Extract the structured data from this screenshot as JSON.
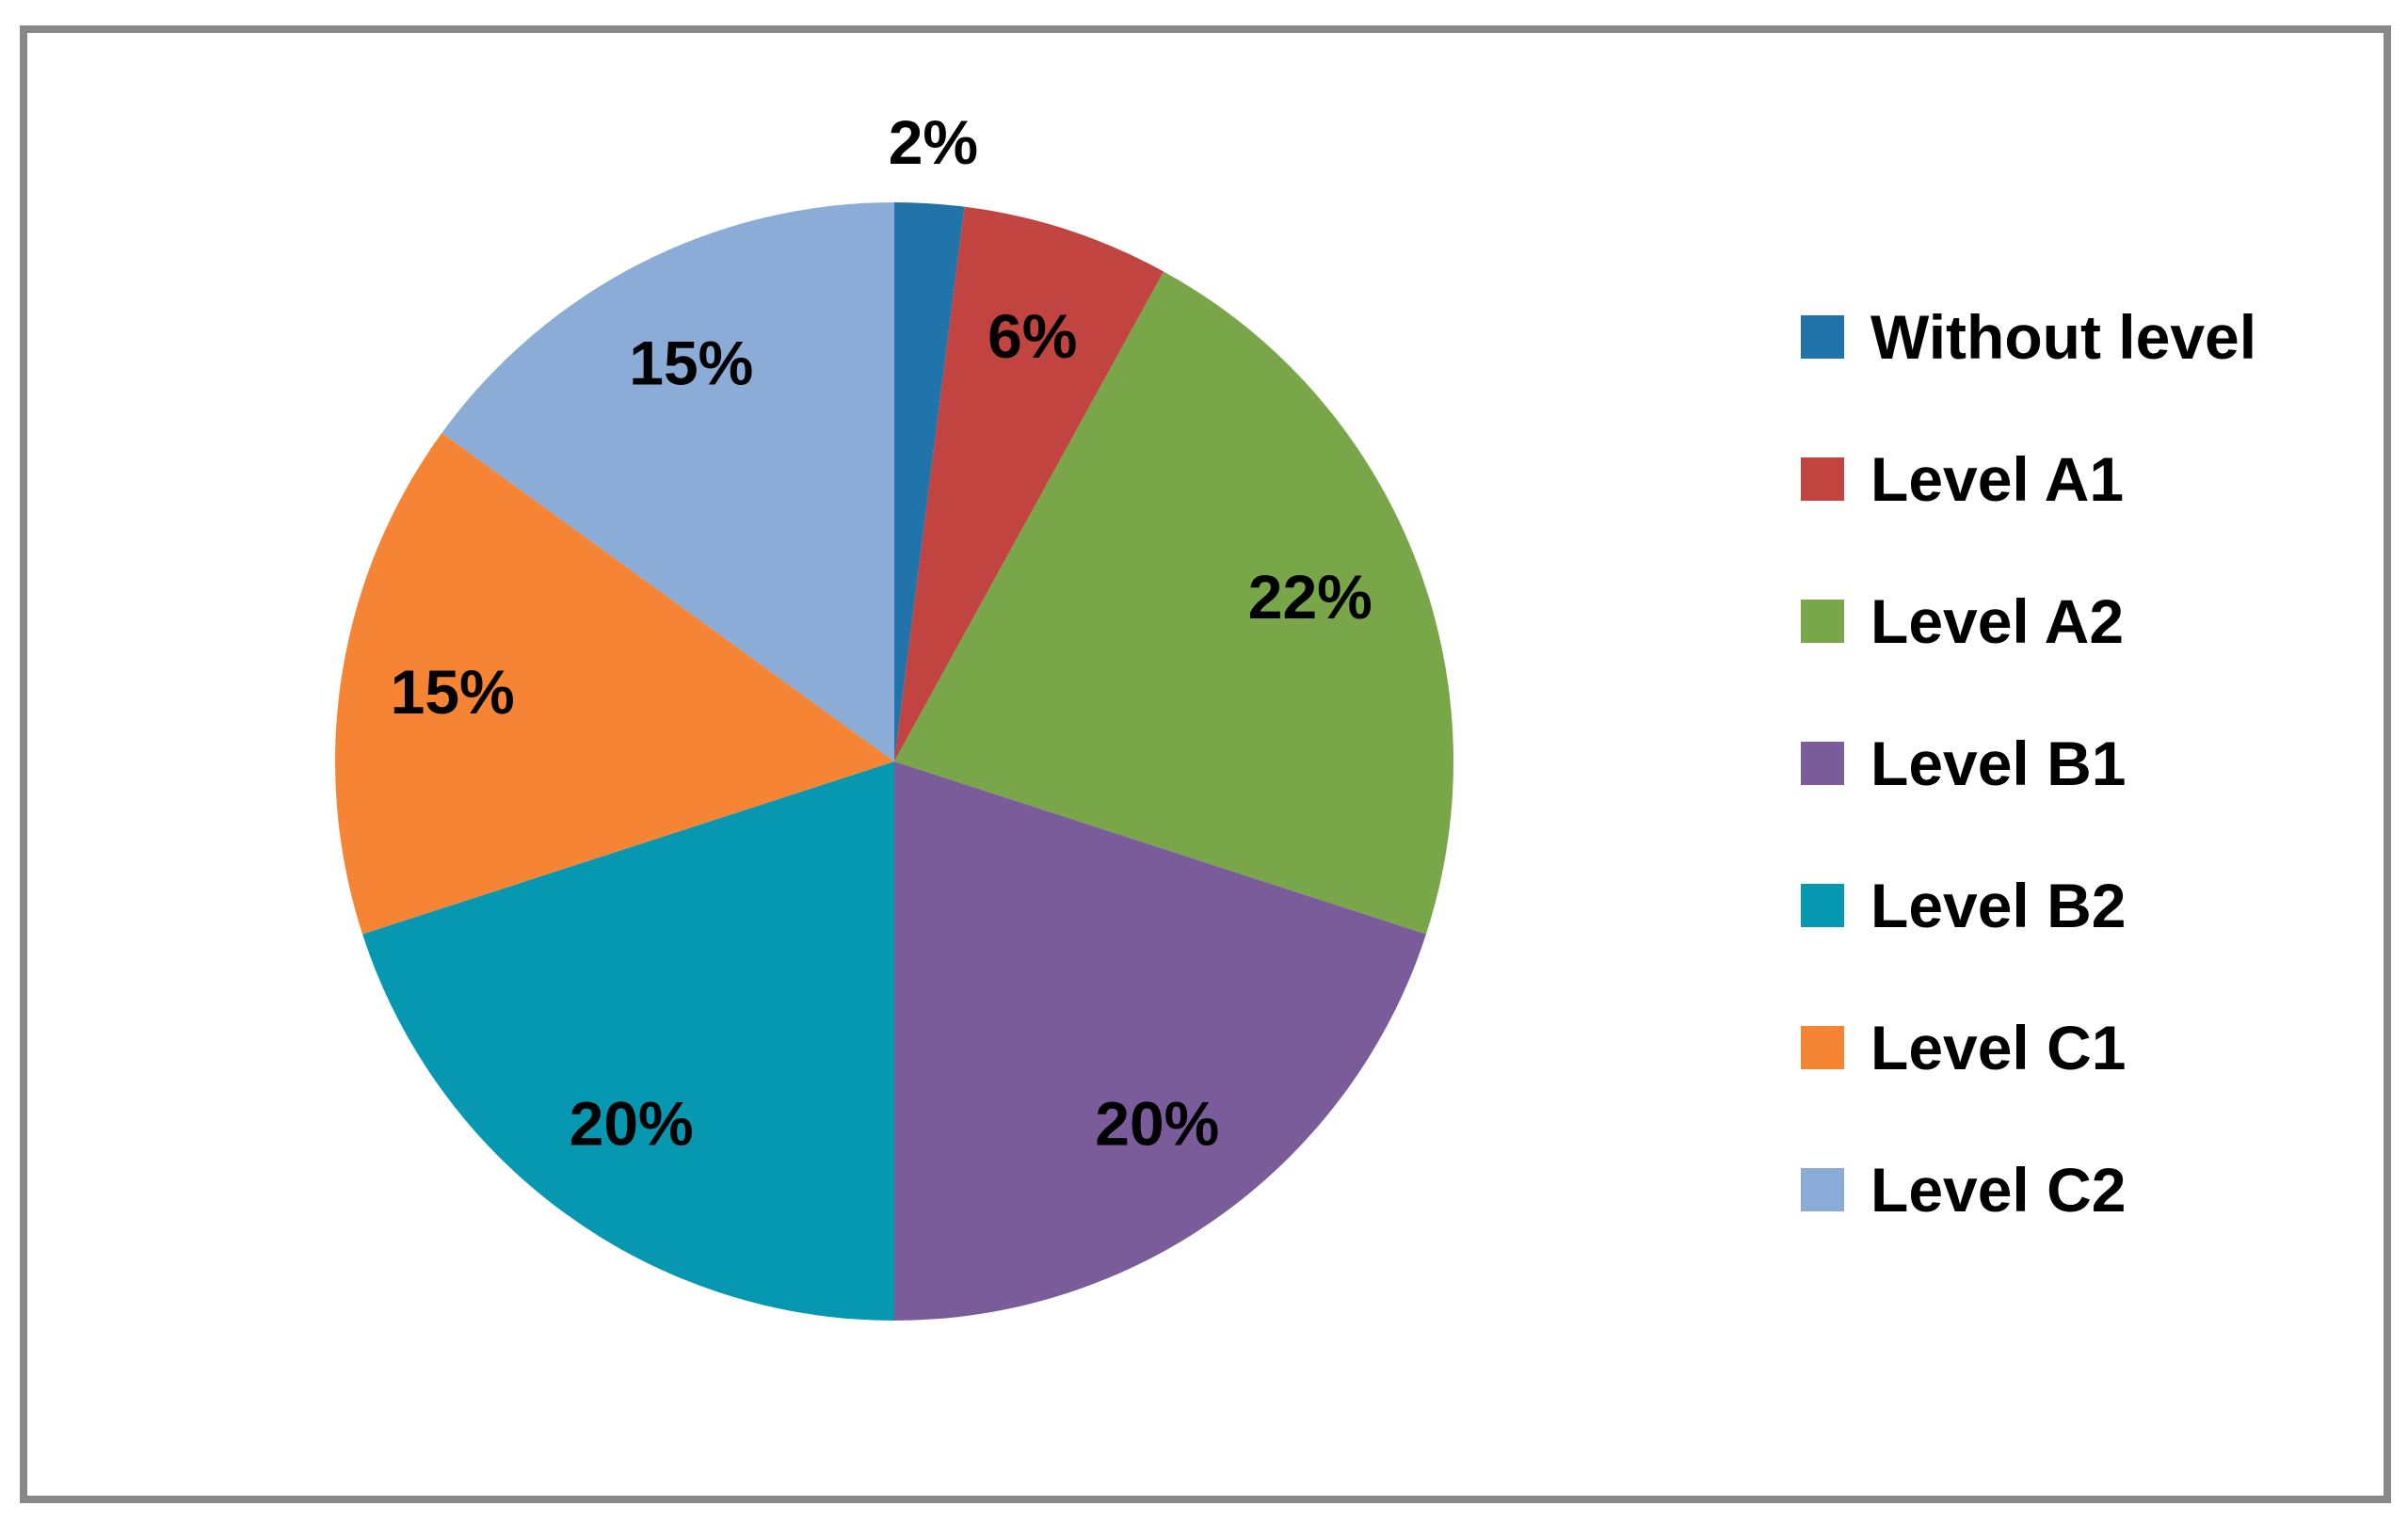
{
  "chart_data": {
    "type": "pie",
    "categories": [
      "Without level",
      "Level A1",
      "Level A2",
      "Level B1",
      "Level B2",
      "Level C1",
      "Level C2"
    ],
    "values": [
      2,
      6,
      22,
      20,
      20,
      15,
      15
    ],
    "slices": [
      {
        "label": "Without level",
        "value": 2,
        "percent_label": "2%",
        "color": "#2074A9",
        "label_outside": true
      },
      {
        "label": "Level A1",
        "value": 6,
        "percent_label": "6%",
        "color": "#C24440",
        "label_outside": false
      },
      {
        "label": "Level A2",
        "value": 22,
        "percent_label": "22%",
        "color": "#7AA64A",
        "label_outside": false
      },
      {
        "label": "Level B1",
        "value": 20,
        "percent_label": "20%",
        "color": "#7B5C9B",
        "label_outside": false
      },
      {
        "label": "Level B2",
        "value": 20,
        "percent_label": "20%",
        "color": "#0598B0",
        "label_outside": false
      },
      {
        "label": "Level C1",
        "value": 15,
        "percent_label": "15%",
        "color": "#F58535",
        "label_outside": false
      },
      {
        "label": "Level C2",
        "value": 15,
        "percent_label": "15%",
        "color": "#8BACD6",
        "label_outside": false
      }
    ],
    "layout_hints": {
      "start_angle_deg": 0,
      "direction": "clockwise",
      "legend_position": "right",
      "data_labels": "percent",
      "border_color": "#878787",
      "label_color": "#000000",
      "background_color": "#FFFFFF"
    }
  }
}
